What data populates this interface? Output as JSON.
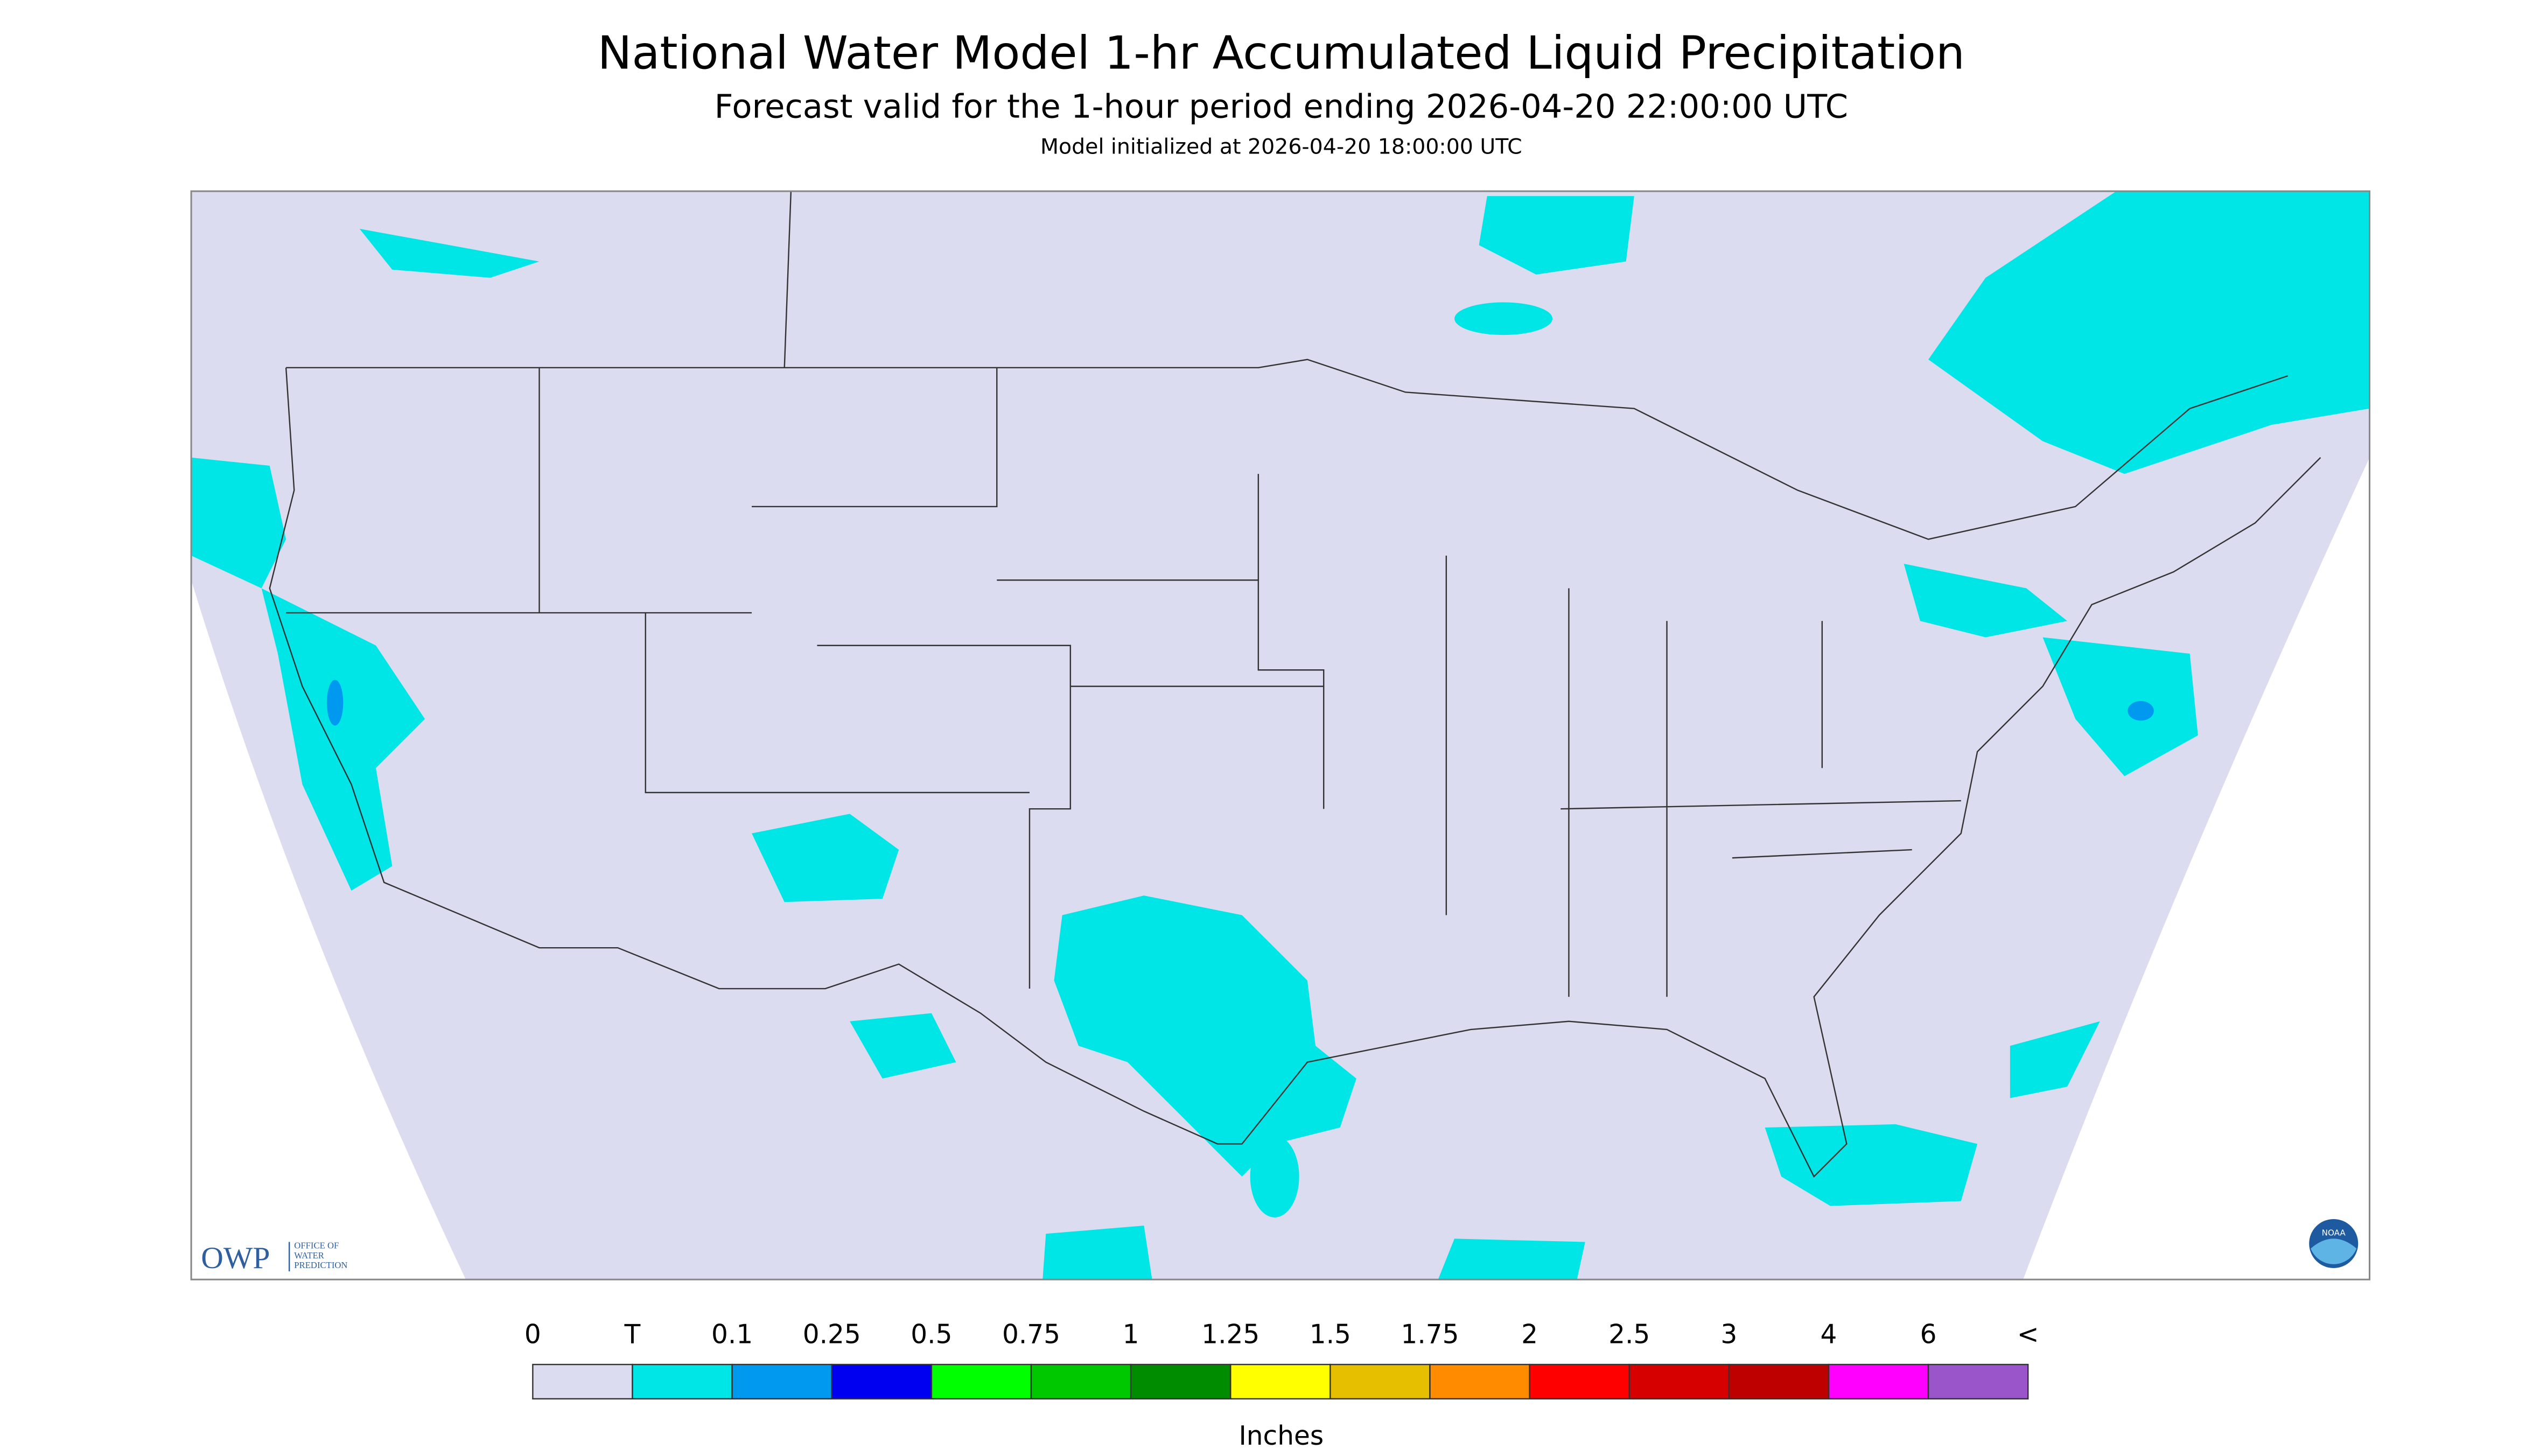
{
  "header": {
    "title": "National Water Model 1-hr Accumulated Liquid Precipitation",
    "subtitle": "Forecast valid for the 1-hour period ending 2026-04-20 22:00:00 UTC",
    "init": "Model initialized at 2026-04-20 18:00:00 UTC"
  },
  "logos": {
    "owp": "OWP",
    "owp_text": [
      "OFFICE OF",
      "WATER",
      "PREDICTION"
    ],
    "noaa": "NOAA"
  },
  "legend": {
    "labels": [
      "0",
      "T",
      "0.1",
      "0.25",
      "0.5",
      "0.75",
      "1",
      "1.25",
      "1.5",
      "1.75",
      "2",
      "2.5",
      "3",
      "4",
      "6",
      "<"
    ],
    "colors": [
      "#dcdcf0",
      "#00e6e6",
      "#0099f0",
      "#0000f0",
      "#00ff00",
      "#00c800",
      "#008c00",
      "#ffff00",
      "#e6c000",
      "#ff8c00",
      "#ff0000",
      "#d70000",
      "#be0000",
      "#ff00ff",
      "#9955c9"
    ],
    "unit": "Inches"
  }
}
